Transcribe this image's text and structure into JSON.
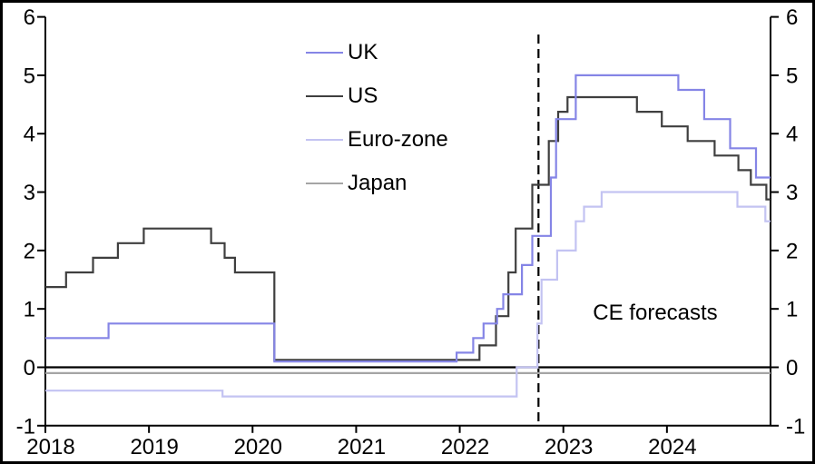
{
  "chart_data": {
    "type": "line",
    "subtype": "step",
    "title": "",
    "annotation": "CE forecasts",
    "xlim": [
      2018,
      2025
    ],
    "ylim": [
      -1,
      6
    ],
    "x_ticks": [
      "2018",
      "2019",
      "2020",
      "2021",
      "2022",
      "2023",
      "2024"
    ],
    "x_tick_years": [
      2018,
      2019,
      2020,
      2021,
      2022,
      2023,
      2024
    ],
    "y_ticks": [
      -1,
      0,
      1,
      2,
      3,
      4,
      5,
      6
    ],
    "grid": false,
    "legend_position": "upper-left-inside",
    "forecast_divider_x": 2022.76,
    "zero_line": 0,
    "axis_color": "#000000",
    "series": [
      {
        "name": "UK",
        "color": "#8585e6",
        "steps": [
          [
            2018.0,
            0.5
          ],
          [
            2018.61,
            0.75
          ],
          [
            2020.21,
            0.1
          ],
          [
            2021.97,
            0.25
          ],
          [
            2022.13,
            0.5
          ],
          [
            2022.23,
            0.75
          ],
          [
            2022.36,
            1.0
          ],
          [
            2022.42,
            1.25
          ],
          [
            2022.6,
            1.75
          ],
          [
            2022.7,
            2.25
          ],
          [
            2022.88,
            3.25
          ],
          [
            2022.93,
            4.25
          ],
          [
            2023.12,
            5.0
          ],
          [
            2024.11,
            4.75
          ],
          [
            2024.36,
            4.25
          ],
          [
            2024.61,
            3.75
          ],
          [
            2024.86,
            3.25
          ],
          [
            2025.0,
            3.25
          ]
        ]
      },
      {
        "name": "US",
        "color": "#3f3f3f",
        "steps": [
          [
            2018.0,
            1.375
          ],
          [
            2018.2,
            1.625
          ],
          [
            2018.46,
            1.875
          ],
          [
            2018.7,
            2.125
          ],
          [
            2018.95,
            2.375
          ],
          [
            2019.6,
            2.125
          ],
          [
            2019.73,
            1.875
          ],
          [
            2019.83,
            1.625
          ],
          [
            2020.21,
            0.125
          ],
          [
            2022.19,
            0.375
          ],
          [
            2022.35,
            0.875
          ],
          [
            2022.47,
            1.625
          ],
          [
            2022.54,
            2.375
          ],
          [
            2022.7,
            3.125
          ],
          [
            2022.86,
            3.875
          ],
          [
            2022.95,
            4.375
          ],
          [
            2023.04,
            4.625
          ],
          [
            2023.71,
            4.375
          ],
          [
            2023.95,
            4.125
          ],
          [
            2024.2,
            3.875
          ],
          [
            2024.46,
            3.625
          ],
          [
            2024.69,
            3.375
          ],
          [
            2024.81,
            3.125
          ],
          [
            2024.96,
            2.875
          ],
          [
            2025.0,
            2.875
          ]
        ]
      },
      {
        "name": "Euro-zone",
        "color": "#c3c3f2",
        "steps": [
          [
            2018.0,
            -0.4
          ],
          [
            2019.71,
            -0.5
          ],
          [
            2022.55,
            0.0
          ],
          [
            2022.75,
            0.75
          ],
          [
            2022.79,
            1.5
          ],
          [
            2022.94,
            2.0
          ],
          [
            2023.12,
            2.5
          ],
          [
            2023.2,
            2.75
          ],
          [
            2023.37,
            3.0
          ],
          [
            2024.68,
            2.75
          ],
          [
            2024.95,
            2.5
          ],
          [
            2025.0,
            2.5
          ]
        ]
      },
      {
        "name": "Japan",
        "color": "#a5a5a5",
        "steps": [
          [
            2018.0,
            -0.1
          ],
          [
            2025.0,
            -0.1
          ]
        ]
      }
    ]
  }
}
